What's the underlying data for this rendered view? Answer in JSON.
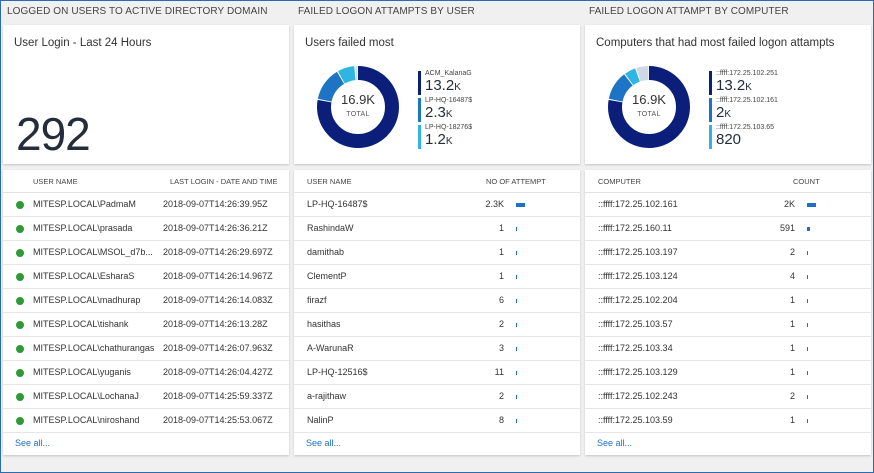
{
  "colors": {
    "accent": "#1f6fc5",
    "status_online": "#2e9a3c",
    "donut": [
      "#0b1f7a",
      "#1d74c4",
      "#2fb4e3",
      "#cfd8e6"
    ]
  },
  "columns": [
    {
      "title": "LOGGED ON USERS TO ACTIVE DIRECTORY DOMAIN",
      "tile": {
        "title": "User Login - Last 24 Hours",
        "value": "292"
      },
      "list": {
        "headers": [
          "USER NAME",
          "LAST LOGIN - DATE AND TIME"
        ],
        "rows": [
          [
            "MITESP.LOCAL\\PadmaM",
            "2018-09-07T14:26:39.95Z"
          ],
          [
            "MITESP.LOCAL\\prasada",
            "2018-09-07T14:26:36.21Z"
          ],
          [
            "MITESP.LOCAL\\MSOL_d7b...",
            "2018-09-07T14:26:29.697Z"
          ],
          [
            "MITESP.LOCAL\\EsharaS",
            "2018-09-07T14:26:14.967Z"
          ],
          [
            "MITESP.LOCAL\\madhurap",
            "2018-09-07T14:26:14.083Z"
          ],
          [
            "MITESP.LOCAL\\tishank",
            "2018-09-07T14:26:13.28Z"
          ],
          [
            "MITESP.LOCAL\\chathurangas",
            "2018-09-07T14:26:07.963Z"
          ],
          [
            "MITESP.LOCAL\\yuganis",
            "2018-09-07T14:26:04.427Z"
          ],
          [
            "MITESP.LOCAL\\LochanaJ",
            "2018-09-07T14:25:59.337Z"
          ],
          [
            "MITESP.LOCAL\\niroshand",
            "2018-09-07T14:25:53.067Z"
          ]
        ],
        "see_all": "See all..."
      }
    },
    {
      "title": "FAILED LOGON ATTAMPTS BY USER",
      "tile": {
        "title": "Users failed most",
        "total": "16.9K",
        "total_label": "TOTAL",
        "legend": [
          {
            "name": "ACM_KalanaG",
            "value": "13.2",
            "unit": "K"
          },
          {
            "name": "LP-HQ-16487$",
            "value": "2.3",
            "unit": "K"
          },
          {
            "name": "LP-HQ-18276$",
            "value": "1.2",
            "unit": "K"
          }
        ]
      },
      "list": {
        "headers": [
          "USER NAME",
          "NO OF ATTEMPT"
        ],
        "rows": [
          {
            "name": "LP-HQ-16487$",
            "count": "2.3K",
            "bar": 2300
          },
          {
            "name": "RashindaW",
            "count": "1",
            "bar": 1
          },
          {
            "name": "damithab",
            "count": "1",
            "bar": 1
          },
          {
            "name": "ClementP",
            "count": "1",
            "bar": 1
          },
          {
            "name": "firazf",
            "count": "6",
            "bar": 6
          },
          {
            "name": "hasithas",
            "count": "2",
            "bar": 2
          },
          {
            "name": "A-WarunaR",
            "count": "3",
            "bar": 3
          },
          {
            "name": "LP-HQ-12516$",
            "count": "11",
            "bar": 11
          },
          {
            "name": "a-rajithaw",
            "count": "2",
            "bar": 2
          },
          {
            "name": "NalinP",
            "count": "8",
            "bar": 8
          }
        ],
        "see_all": "See all..."
      }
    },
    {
      "title": "FAILED LOGON ATTAMPT BY COMPUTER",
      "tile": {
        "title": "Computers that had most failed logon attampts",
        "total": "16.9K",
        "total_label": "TOTAL",
        "legend": [
          {
            "name": "::ffff:172.25.102.251",
            "value": "13.2",
            "unit": "K"
          },
          {
            "name": "::ffff:172.25.102.161",
            "value": "2",
            "unit": "K"
          },
          {
            "name": "::ffff:172.25.103.65",
            "value": "820",
            "unit": ""
          }
        ]
      },
      "list": {
        "headers": [
          "COMPUTER",
          "COUNT"
        ],
        "rows": [
          {
            "name": "::ffff:172.25.102.161",
            "count": "2K",
            "bar": 2000
          },
          {
            "name": "::ffff:172.25.160.11",
            "count": "591",
            "bar": 591
          },
          {
            "name": "::ffff:172.25.103.197",
            "count": "2",
            "bar": 2
          },
          {
            "name": "::ffff:172.25.103.124",
            "count": "4",
            "bar": 4
          },
          {
            "name": "::ffff:172.25.102.204",
            "count": "1",
            "bar": 1
          },
          {
            "name": "::ffff:172.25.103.57",
            "count": "1",
            "bar": 1
          },
          {
            "name": "::ffff:172.25.103.34",
            "count": "1",
            "bar": 1
          },
          {
            "name": "::ffff:172.25.103.129",
            "count": "1",
            "bar": 1
          },
          {
            "name": "::ffff:172.25.102.243",
            "count": "2",
            "bar": 2
          },
          {
            "name": "::ffff:172.25.103.59",
            "count": "1",
            "bar": 1
          }
        ],
        "see_all": "See all..."
      }
    }
  ],
  "chart_data": [
    {
      "type": "pie",
      "categories": [
        "ACM_KalanaG",
        "LP-HQ-16487$",
        "LP-HQ-18276$",
        "Other"
      ],
      "values": [
        13200,
        2300,
        1200,
        200
      ],
      "title": "Users failed most"
    },
    {
      "type": "pie",
      "categories": [
        "::ffff:172.25.102.251",
        "::ffff:172.25.102.161",
        "::ffff:172.25.103.65",
        "Other"
      ],
      "values": [
        13200,
        2000,
        820,
        880
      ],
      "title": "Computers that had most failed logon attampts"
    }
  ]
}
